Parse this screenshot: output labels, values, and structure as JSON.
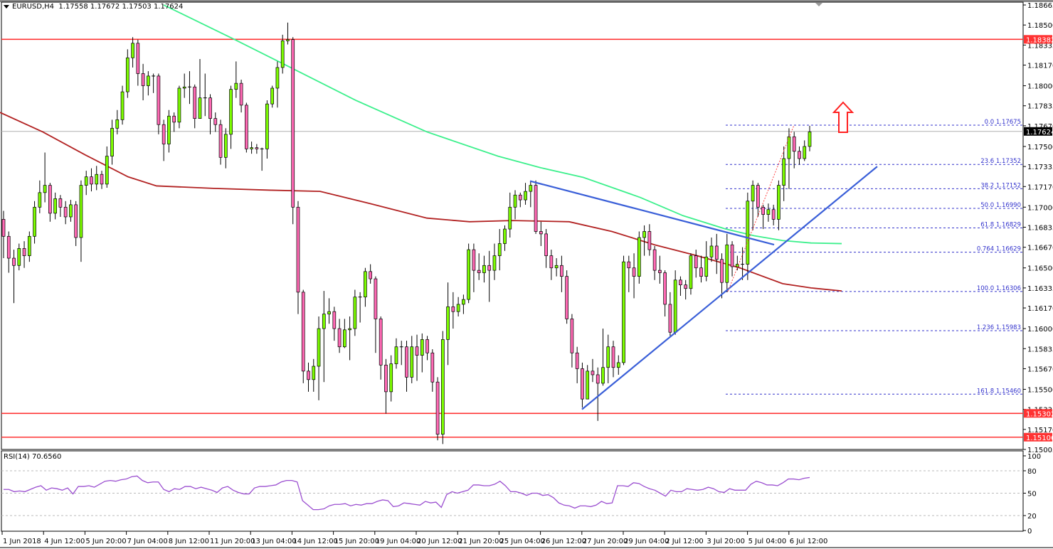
{
  "header": {
    "symbol": "EURUSD,H4",
    "ohlc": "1.17558 1.17672 1.17503 1.17624"
  },
  "rsi_panel": {
    "label": "RSI(14) 70.6560",
    "levels": [
      "100",
      "80",
      "50",
      "20",
      "0"
    ]
  },
  "colors": {
    "bull": "#7cfc00",
    "bear": "#ff69b4",
    "wick": "#000000",
    "sma_green": "#3cf08c",
    "sma_red": "#b22222",
    "trend_blue": "#3a5fd8",
    "resistance_red": "#ff3333",
    "fib_blue": "#3333cc",
    "rsi_line": "#9b4fd0",
    "arrow_red": "#ff2020"
  },
  "chart_data": {
    "type": "candlestick",
    "title": "EURUSD,H4",
    "xlabel": "",
    "ylabel": "Price",
    "ylim": [
      1.15005,
      1.18665
    ],
    "grid": false,
    "price_axis_ticks": [
      "1.18665",
      "1.18500",
      "1.18335",
      "1.18170",
      "1.18000",
      "1.17835",
      "1.17670",
      "1.17500",
      "1.17335",
      "1.17170",
      "1.17000",
      "1.16835",
      "1.16670",
      "1.16500",
      "1.16335",
      "1.16170",
      "1.16000",
      "1.15835",
      "1.15670",
      "1.15500",
      "1.15335",
      "1.15170",
      "1.15005"
    ],
    "time_axis_ticks": [
      "1 Jun 2018",
      "4 Jun 12:00",
      "5 Jun 20:00",
      "7 Jun 04:00",
      "8 Jun 12:00",
      "11 Jun 20:00",
      "13 Jun 04:00",
      "14 Jun 12:00",
      "15 Jun 20:00",
      "19 Jun 04:00",
      "20 Jun 12:00",
      "21 Jun 20:00",
      "25 Jun 04:00",
      "26 Jun 12:00",
      "27 Jun 20:00",
      "29 Jun 04:00",
      "2 Jul 12:00",
      "3 Jul 20:00",
      "5 Jul 04:00",
      "6 Jul 12:00"
    ],
    "current_price": {
      "value": "1.17624",
      "price": 1.17624
    },
    "horizontal_levels": [
      {
        "label": "1.18382",
        "price": 1.18382
      },
      {
        "label": "1.15302",
        "price": 1.15302
      },
      {
        "label": "1.15106",
        "price": 1.15106
      }
    ],
    "fibonacci": [
      {
        "label": "0.0 1.17675",
        "price": 1.17675
      },
      {
        "label": "23.6 1.17352",
        "price": 1.17352
      },
      {
        "label": "38.2 1.17152",
        "price": 1.17152
      },
      {
        "label": "50.0 1.16990",
        "price": 1.1699
      },
      {
        "label": "61.8 1.16829",
        "price": 1.16829
      },
      {
        "label": "0.764 1.16629",
        "price": 1.16629
      },
      {
        "label": "100.0 1.16306",
        "price": 1.16306
      },
      {
        "label": "1.236 1.15983",
        "price": 1.15983
      },
      {
        "label": "161.8 1.15460",
        "price": 1.1546
      }
    ],
    "trendlines": [
      {
        "name": "descending-resistance",
        "from": [
          745,
          1.17215
        ],
        "to": [
          1088,
          1.16691
        ]
      },
      {
        "name": "ascending-support",
        "from": [
          818,
          1.15335
        ],
        "to": [
          1233,
          1.17335
        ]
      }
    ],
    "moving_averages": [
      {
        "name": "SMA green (100)",
        "points": [
          [
            230,
            1.18665
          ],
          [
            330,
            1.1838
          ],
          [
            405,
            1.1816
          ],
          [
            500,
            1.1788
          ],
          [
            600,
            1.1762
          ],
          [
            700,
            1.1742
          ],
          [
            760,
            1.17325
          ],
          [
            820,
            1.17245
          ],
          [
            900,
            1.1708
          ],
          [
            960,
            1.1693
          ],
          [
            1020,
            1.1682
          ],
          [
            1060,
            1.16765
          ],
          [
            1100,
            1.16725
          ],
          [
            1140,
            1.16705
          ],
          [
            1183,
            1.167
          ]
        ]
      },
      {
        "name": "SMA red (200)",
        "points": [
          [
            0,
            1.1778
          ],
          [
            60,
            1.1762
          ],
          [
            120,
            1.1743
          ],
          [
            180,
            1.1725
          ],
          [
            220,
            1.17175
          ],
          [
            300,
            1.17155
          ],
          [
            380,
            1.1714
          ],
          [
            450,
            1.1713
          ],
          [
            520,
            1.1703
          ],
          [
            600,
            1.1691
          ],
          [
            660,
            1.1688
          ],
          [
            720,
            1.1689
          ],
          [
            800,
            1.1688
          ],
          [
            860,
            1.168
          ],
          [
            920,
            1.1669
          ],
          [
            980,
            1.166
          ],
          [
            1040,
            1.165
          ],
          [
            1100,
            1.1637
          ],
          [
            1140,
            1.16335
          ],
          [
            1183,
            1.1631
          ]
        ]
      }
    ],
    "candles": [
      [
        1.169,
        1.1676,
        1.1697,
        1.1658
      ],
      [
        1.1676,
        1.1658,
        1.168,
        1.1646
      ],
      [
        1.1658,
        1.1652,
        1.1665,
        1.1621
      ],
      [
        1.1652,
        1.1666,
        1.167,
        1.1648
      ],
      [
        1.1666,
        1.166,
        1.1672,
        1.165
      ],
      [
        1.166,
        1.1676,
        1.168,
        1.1655
      ],
      [
        1.1676,
        1.17,
        1.1705,
        1.167
      ],
      [
        1.17,
        1.1712,
        1.1722,
        1.1695
      ],
      [
        1.1712,
        1.1718,
        1.1745,
        1.1704
      ],
      [
        1.1718,
        1.1695,
        1.172,
        1.1688
      ],
      [
        1.1695,
        1.1707,
        1.1712,
        1.169
      ],
      [
        1.1707,
        1.17,
        1.171,
        1.1692
      ],
      [
        1.17,
        1.1692,
        1.1705,
        1.1686
      ],
      [
        1.1692,
        1.1702,
        1.1706,
        1.1688
      ],
      [
        1.1702,
        1.1675,
        1.1705,
        1.1668
      ],
      [
        1.1675,
        1.1718,
        1.1722,
        1.1655
      ],
      [
        1.1718,
        1.1725,
        1.173,
        1.171
      ],
      [
        1.1725,
        1.1719,
        1.1732,
        1.1713
      ],
      [
        1.1719,
        1.1727,
        1.1734,
        1.1714
      ],
      [
        1.1727,
        1.1719,
        1.173,
        1.1715
      ],
      [
        1.1719,
        1.1742,
        1.175,
        1.1716
      ],
      [
        1.1742,
        1.1765,
        1.1772,
        1.1735
      ],
      [
        1.1765,
        1.1772,
        1.178,
        1.176
      ],
      [
        1.1772,
        1.1795,
        1.18,
        1.1768
      ],
      [
        1.1795,
        1.1823,
        1.183,
        1.179
      ],
      [
        1.1823,
        1.1835,
        1.184,
        1.1815
      ],
      [
        1.1835,
        1.181,
        1.1838,
        1.18
      ],
      [
        1.181,
        1.18,
        1.1818,
        1.1788
      ],
      [
        1.18,
        1.1808,
        1.1812,
        1.1792
      ],
      [
        1.1808,
        1.1808,
        1.181,
        1.1794
      ],
      [
        1.1808,
        1.1768,
        1.181,
        1.176
      ],
      [
        1.1768,
        1.1752,
        1.1772,
        1.1738
      ],
      [
        1.1752,
        1.1775,
        1.178,
        1.1745
      ],
      [
        1.1775,
        1.177,
        1.1778,
        1.1762
      ],
      [
        1.177,
        1.1798,
        1.18,
        1.1765
      ],
      [
        1.1798,
        1.1799,
        1.181,
        1.179
      ],
      [
        1.1799,
        1.1799,
        1.1812,
        1.1785
      ],
      [
        1.1799,
        1.1773,
        1.1801,
        1.1765
      ],
      [
        1.1773,
        1.179,
        1.1822,
        1.1773
      ],
      [
        1.179,
        1.179,
        1.181,
        1.1775
      ],
      [
        1.179,
        1.1773,
        1.1793,
        1.176
      ],
      [
        1.1773,
        1.1768,
        1.1778,
        1.1762
      ],
      [
        1.1768,
        1.1741,
        1.1772,
        1.1735
      ],
      [
        1.1741,
        1.176,
        1.1765,
        1.1732
      ],
      [
        1.176,
        1.1797,
        1.18,
        1.1748
      ],
      [
        1.1797,
        1.1802,
        1.182,
        1.179
      ],
      [
        1.1802,
        1.1784,
        1.1805,
        1.1778
      ],
      [
        1.1784,
        1.1748,
        1.1786,
        1.1745
      ],
      [
        1.1748,
        1.1749,
        1.1754,
        1.1744
      ],
      [
        1.1749,
        1.1748,
        1.1752,
        1.1744
      ],
      [
        1.1748,
        1.1748,
        1.1749,
        1.173
      ],
      [
        1.1748,
        1.1785,
        1.1788,
        1.174
      ],
      [
        1.1785,
        1.1798,
        1.18,
        1.1782
      ],
      [
        1.1798,
        1.1815,
        1.182,
        1.1782
      ],
      [
        1.1815,
        1.1837,
        1.1842,
        1.181
      ],
      [
        1.1837,
        1.1838,
        1.1852,
        1.1834
      ],
      [
        1.1838,
        1.17,
        1.184,
        1.1686
      ],
      [
        1.17,
        1.163,
        1.1705,
        1.1612
      ],
      [
        1.163,
        1.1565,
        1.1632,
        1.1555
      ],
      [
        1.1565,
        1.1558,
        1.1572,
        1.1548
      ],
      [
        1.1558,
        1.1569,
        1.1575,
        1.1548
      ],
      [
        1.1569,
        1.16,
        1.161,
        1.1541
      ],
      [
        1.16,
        1.1612,
        1.1631,
        1.1556
      ],
      [
        1.1612,
        1.1614,
        1.1625,
        1.1604
      ],
      [
        1.1614,
        1.16,
        1.1618,
        1.159
      ],
      [
        1.16,
        1.1585,
        1.1608,
        1.158
      ],
      [
        1.1585,
        1.1599,
        1.1608,
        1.1584
      ],
      [
        1.1599,
        1.16,
        1.161,
        1.1574
      ],
      [
        1.16,
        1.1626,
        1.1632,
        1.1594
      ],
      [
        1.1626,
        1.1626,
        1.163,
        1.1605
      ],
      [
        1.1626,
        1.1647,
        1.165,
        1.1618
      ],
      [
        1.1647,
        1.1641,
        1.1653,
        1.1637
      ],
      [
        1.1641,
        1.1608,
        1.1643,
        1.158
      ],
      [
        1.1608,
        1.157,
        1.161,
        1.1558
      ],
      [
        1.157,
        1.1548,
        1.1575,
        1.153
      ],
      [
        1.1548,
        1.1571,
        1.1578,
        1.154
      ],
      [
        1.1571,
        1.1585,
        1.1592,
        1.1567
      ],
      [
        1.1585,
        1.1585,
        1.159,
        1.157
      ],
      [
        1.1585,
        1.156,
        1.159,
        1.1548
      ],
      [
        1.156,
        1.1585,
        1.1594,
        1.1555
      ],
      [
        1.1585,
        1.1578,
        1.1595,
        1.1557
      ],
      [
        1.1578,
        1.1591,
        1.1596,
        1.1564
      ],
      [
        1.1591,
        1.158,
        1.1594,
        1.1574
      ],
      [
        1.158,
        1.1556,
        1.1583,
        1.1548
      ],
      [
        1.1556,
        1.1513,
        1.156,
        1.1508
      ],
      [
        1.1513,
        1.1591,
        1.1598,
        1.1505
      ],
      [
        1.1591,
        1.1618,
        1.1638,
        1.157
      ],
      [
        1.1618,
        1.1614,
        1.163,
        1.16
      ],
      [
        1.1614,
        1.162,
        1.1626,
        1.161
      ],
      [
        1.162,
        1.1624,
        1.1628,
        1.1612
      ],
      [
        1.1624,
        1.1665,
        1.167,
        1.1621
      ],
      [
        1.1665,
        1.1648,
        1.167,
        1.163
      ],
      [
        1.1648,
        1.1646,
        1.1662,
        1.164
      ],
      [
        1.1646,
        1.1652,
        1.166,
        1.1638
      ],
      [
        1.1652,
        1.1648,
        1.1664,
        1.1622
      ],
      [
        1.1648,
        1.166,
        1.167,
        1.164
      ],
      [
        1.166,
        1.167,
        1.1682,
        1.1648
      ],
      [
        1.167,
        1.1682,
        1.1685,
        1.1664
      ],
      [
        1.1682,
        1.17,
        1.1712,
        1.1675
      ],
      [
        1.17,
        1.171,
        1.1714,
        1.169
      ],
      [
        1.171,
        1.1706,
        1.1712,
        1.17
      ],
      [
        1.1706,
        1.1713,
        1.172,
        1.1702
      ],
      [
        1.1713,
        1.1718,
        1.1721,
        1.17
      ],
      [
        1.1718,
        1.168,
        1.1722,
        1.1678
      ],
      [
        1.168,
        1.1678,
        1.1688,
        1.1668
      ],
      [
        1.1678,
        1.166,
        1.1682,
        1.165
      ],
      [
        1.166,
        1.165,
        1.1665,
        1.164
      ],
      [
        1.165,
        1.1652,
        1.1658,
        1.1643
      ],
      [
        1.1652,
        1.1643,
        1.166,
        1.163
      ],
      [
        1.1643,
        1.1608,
        1.1648,
        1.1604
      ],
      [
        1.1608,
        1.158,
        1.1612,
        1.1568
      ],
      [
        1.158,
        1.1567,
        1.1585,
        1.1555
      ],
      [
        1.1567,
        1.1542,
        1.1572,
        1.1535
      ],
      [
        1.1542,
        1.1565,
        1.157,
        1.1548
      ],
      [
        1.1565,
        1.1562,
        1.1575,
        1.1556
      ],
      [
        1.1562,
        1.1555,
        1.1568,
        1.1524
      ],
      [
        1.1555,
        1.1568,
        1.16,
        1.1553
      ],
      [
        1.1568,
        1.1585,
        1.1595,
        1.1555
      ],
      [
        1.1585,
        1.1568,
        1.159,
        1.156
      ],
      [
        1.1568,
        1.1572,
        1.1578,
        1.1562
      ],
      [
        1.1572,
        1.1655,
        1.166,
        1.157
      ],
      [
        1.1655,
        1.165,
        1.166,
        1.163
      ],
      [
        1.165,
        1.1643,
        1.1662,
        1.1625
      ],
      [
        1.1643,
        1.1675,
        1.168,
        1.1637
      ],
      [
        1.1675,
        1.168,
        1.1685,
        1.166
      ],
      [
        1.168,
        1.1665,
        1.1686,
        1.166
      ],
      [
        1.1665,
        1.1648,
        1.1668,
        1.164
      ],
      [
        1.1648,
        1.1646,
        1.166,
        1.1637
      ],
      [
        1.1646,
        1.162,
        1.1648,
        1.161
      ],
      [
        1.162,
        1.1597,
        1.163,
        1.1594
      ],
      [
        1.1597,
        1.164,
        1.1648,
        1.1595
      ],
      [
        1.164,
        1.1636,
        1.1643,
        1.1627
      ],
      [
        1.1636,
        1.1633,
        1.164,
        1.1624
      ],
      [
        1.1633,
        1.166,
        1.1662,
        1.1628
      ],
      [
        1.166,
        1.165,
        1.1665,
        1.1642
      ],
      [
        1.165,
        1.1643,
        1.166,
        1.1638
      ],
      [
        1.1643,
        1.1659,
        1.1672,
        1.1639
      ],
      [
        1.1659,
        1.1668,
        1.1675,
        1.1655
      ],
      [
        1.1668,
        1.1657,
        1.1678,
        1.1645
      ],
      [
        1.1657,
        1.1638,
        1.1662,
        1.1625
      ],
      [
        1.1638,
        1.1669,
        1.1678,
        1.163
      ],
      [
        1.1669,
        1.1651,
        1.1672,
        1.1643
      ],
      [
        1.1651,
        1.1653,
        1.166,
        1.1648
      ],
      [
        1.1653,
        1.1653,
        1.1667,
        1.164
      ],
      [
        1.1653,
        1.1705,
        1.1712,
        1.164
      ],
      [
        1.1705,
        1.1718,
        1.1722,
        1.1681
      ],
      [
        1.1718,
        1.17,
        1.172,
        1.1692
      ],
      [
        1.17,
        1.1694,
        1.1702,
        1.1682
      ],
      [
        1.1694,
        1.1698,
        1.1703,
        1.1688
      ],
      [
        1.1698,
        1.169,
        1.1702,
        1.1685
      ],
      [
        1.169,
        1.1718,
        1.1722,
        1.1681
      ],
      [
        1.1718,
        1.174,
        1.175,
        1.1705
      ],
      [
        1.174,
        1.1758,
        1.1765,
        1.1715
      ],
      [
        1.1758,
        1.1746,
        1.1762,
        1.1732
      ],
      [
        1.1746,
        1.174,
        1.175,
        1.1735
      ],
      [
        1.174,
        1.175,
        1.1755,
        1.1738
      ],
      [
        1.175,
        1.1762,
        1.1767,
        1.1746
      ]
    ],
    "rsi": {
      "name": "RSI(14)",
      "value": 70.656,
      "ylim": [
        0,
        100
      ],
      "levels": [
        20,
        50,
        80
      ],
      "values": [
        55,
        55,
        52,
        53,
        52,
        55,
        58,
        60,
        54,
        57,
        56,
        54,
        57,
        49,
        59,
        59,
        60,
        58,
        62,
        66,
        67,
        66,
        68,
        69,
        72,
        73,
        67,
        64,
        65,
        65,
        55,
        52,
        56,
        55,
        59,
        59,
        56,
        58,
        56,
        54,
        51,
        57,
        59,
        54,
        51,
        49,
        49,
        57,
        59,
        59,
        60,
        61,
        65,
        67,
        67,
        65,
        40,
        34,
        28,
        28,
        29,
        33,
        35,
        35,
        36,
        33,
        35,
        34,
        36,
        36,
        39,
        41,
        40,
        32,
        33,
        37,
        36,
        35,
        34,
        39,
        37,
        38,
        31,
        48,
        52,
        50,
        52,
        54,
        61,
        61,
        60,
        60,
        62,
        66,
        60,
        52,
        52,
        50,
        47,
        50,
        50,
        47,
        48,
        44,
        37,
        34,
        33,
        30,
        33,
        33,
        32,
        34,
        39,
        36,
        37,
        60,
        60,
        59,
        64,
        63,
        59,
        56,
        54,
        50,
        46,
        54,
        52,
        52,
        56,
        55,
        54,
        55,
        58,
        56,
        52,
        51,
        56,
        54,
        54,
        54,
        62,
        66,
        64,
        61,
        61,
        60,
        64,
        69,
        69,
        68,
        70,
        71
      ]
    }
  }
}
